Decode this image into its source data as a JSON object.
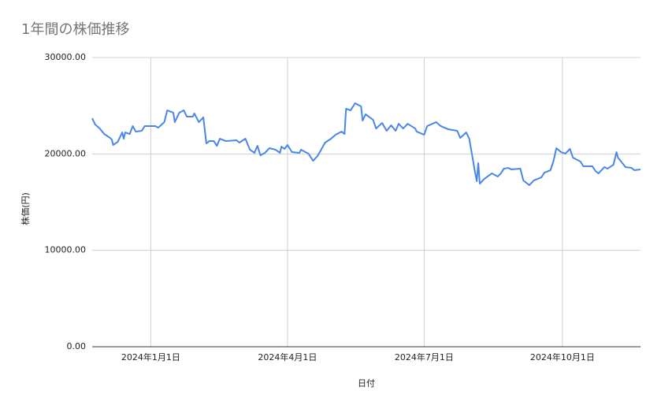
{
  "chart_data": {
    "type": "line",
    "title": "1年間の株価推移",
    "x_label": "日付",
    "y_label": "株価(円)",
    "color": "#4a86e8",
    "grid": true,
    "xlim": [
      "2023-11-23",
      "2024-11-22"
    ],
    "xticks": [
      {
        "value": "2024-01-01",
        "label": "2024年1月1日"
      },
      {
        "value": "2024-04-01",
        "label": "2024年4月1日"
      },
      {
        "value": "2024-07-01",
        "label": "2024年7月1日"
      },
      {
        "value": "2024-10-01",
        "label": "2024年10月1日"
      }
    ],
    "ylim": [
      0,
      30000
    ],
    "yticks": [
      {
        "value": 0,
        "label": "0.00"
      },
      {
        "value": 10000,
        "label": "10000.00"
      },
      {
        "value": 20000,
        "label": "20000.00"
      },
      {
        "value": 30000,
        "label": "30000.00"
      }
    ],
    "x": [
      "2023-11-23",
      "2023-11-25",
      "2023-11-28",
      "2023-12-01",
      "2023-12-05",
      "2023-12-06",
      "2023-12-07",
      "2023-12-10",
      "2023-12-13",
      "2023-12-14",
      "2023-12-15",
      "2023-12-18",
      "2023-12-20",
      "2023-12-22",
      "2023-12-26",
      "2023-12-28",
      "2024-01-04",
      "2024-01-06",
      "2024-01-10",
      "2024-01-12",
      "2024-01-16",
      "2024-01-17",
      "2024-01-20",
      "2024-01-23",
      "2024-01-25",
      "2024-01-29",
      "2024-01-30",
      "2024-02-02",
      "2024-02-05",
      "2024-02-07",
      "2024-02-09",
      "2024-02-12",
      "2024-02-14",
      "2024-02-16",
      "2024-02-20",
      "2024-02-27",
      "2024-02-29",
      "2024-03-04",
      "2024-03-07",
      "2024-03-10",
      "2024-03-12",
      "2024-03-14",
      "2024-03-17",
      "2024-03-20",
      "2024-03-24",
      "2024-03-27",
      "2024-03-28",
      "2024-03-30",
      "2024-04-01",
      "2024-04-04",
      "2024-04-09",
      "2024-04-10",
      "2024-04-15",
      "2024-04-18",
      "2024-04-21",
      "2024-04-24",
      "2024-04-26",
      "2024-04-30",
      "2024-05-03",
      "2024-05-07",
      "2024-05-09",
      "2024-05-10",
      "2024-05-13",
      "2024-05-16",
      "2024-05-20",
      "2024-05-21",
      "2024-05-23",
      "2024-05-28",
      "2024-05-30",
      "2024-06-03",
      "2024-06-06",
      "2024-06-09",
      "2024-06-12",
      "2024-06-14",
      "2024-06-17",
      "2024-06-20",
      "2024-06-25",
      "2024-06-26",
      "2024-07-01",
      "2024-07-03",
      "2024-07-09",
      "2024-07-12",
      "2024-07-17",
      "2024-07-23",
      "2024-07-25",
      "2024-07-29",
      "2024-07-31",
      "2024-08-02",
      "2024-08-04",
      "2024-08-05",
      "2024-08-06",
      "2024-08-07",
      "2024-08-10",
      "2024-08-15",
      "2024-08-19",
      "2024-08-21",
      "2024-08-23",
      "2024-08-26",
      "2024-08-28",
      "2024-09-03",
      "2024-09-05",
      "2024-09-09",
      "2024-09-12",
      "2024-09-17",
      "2024-09-19",
      "2024-09-23",
      "2024-09-25",
      "2024-09-27",
      "2024-09-30",
      "2024-10-03",
      "2024-10-06",
      "2024-10-08",
      "2024-10-13",
      "2024-10-15",
      "2024-10-21",
      "2024-10-23",
      "2024-10-25",
      "2024-10-29",
      "2024-10-31",
      "2024-11-04",
      "2024-11-06",
      "2024-11-07",
      "2024-11-12",
      "2024-11-16",
      "2024-11-18",
      "2024-11-22"
    ],
    "values": [
      23700,
      23050,
      22640,
      22070,
      21660,
      21500,
      20930,
      21250,
      22230,
      21580,
      22230,
      22070,
      22890,
      22320,
      22400,
      22890,
      22890,
      22730,
      23300,
      24520,
      24280,
      23300,
      24280,
      24520,
      23870,
      23870,
      24200,
      23300,
      23790,
      21090,
      21330,
      21330,
      20840,
      21580,
      21330,
      21420,
      21170,
      21580,
      20440,
      20110,
      20840,
      19860,
      20110,
      20600,
      20440,
      20110,
      20760,
      20520,
      20930,
      20190,
      20110,
      20440,
      20030,
      19290,
      19780,
      20600,
      21170,
      21580,
      21990,
      22320,
      22070,
      24690,
      24520,
      25260,
      24930,
      23460,
      24110,
      23540,
      22640,
      23210,
      22400,
      22970,
      22400,
      23130,
      22640,
      23130,
      22640,
      22320,
      21990,
      22890,
      23300,
      22890,
      22560,
      22400,
      21660,
      22230,
      21580,
      19780,
      17980,
      17170,
      19050,
      16920,
      17410,
      17980,
      17660,
      17980,
      18470,
      18550,
      18390,
      18470,
      17250,
      16760,
      17250,
      17570,
      18060,
      18310,
      19210,
      20600,
      20190,
      20030,
      20520,
      19620,
      19210,
      18720,
      18720,
      18230,
      17980,
      18640,
      18470,
      18880,
      20190,
      19620,
      18640,
      18550,
      18310,
      18390
    ]
  }
}
